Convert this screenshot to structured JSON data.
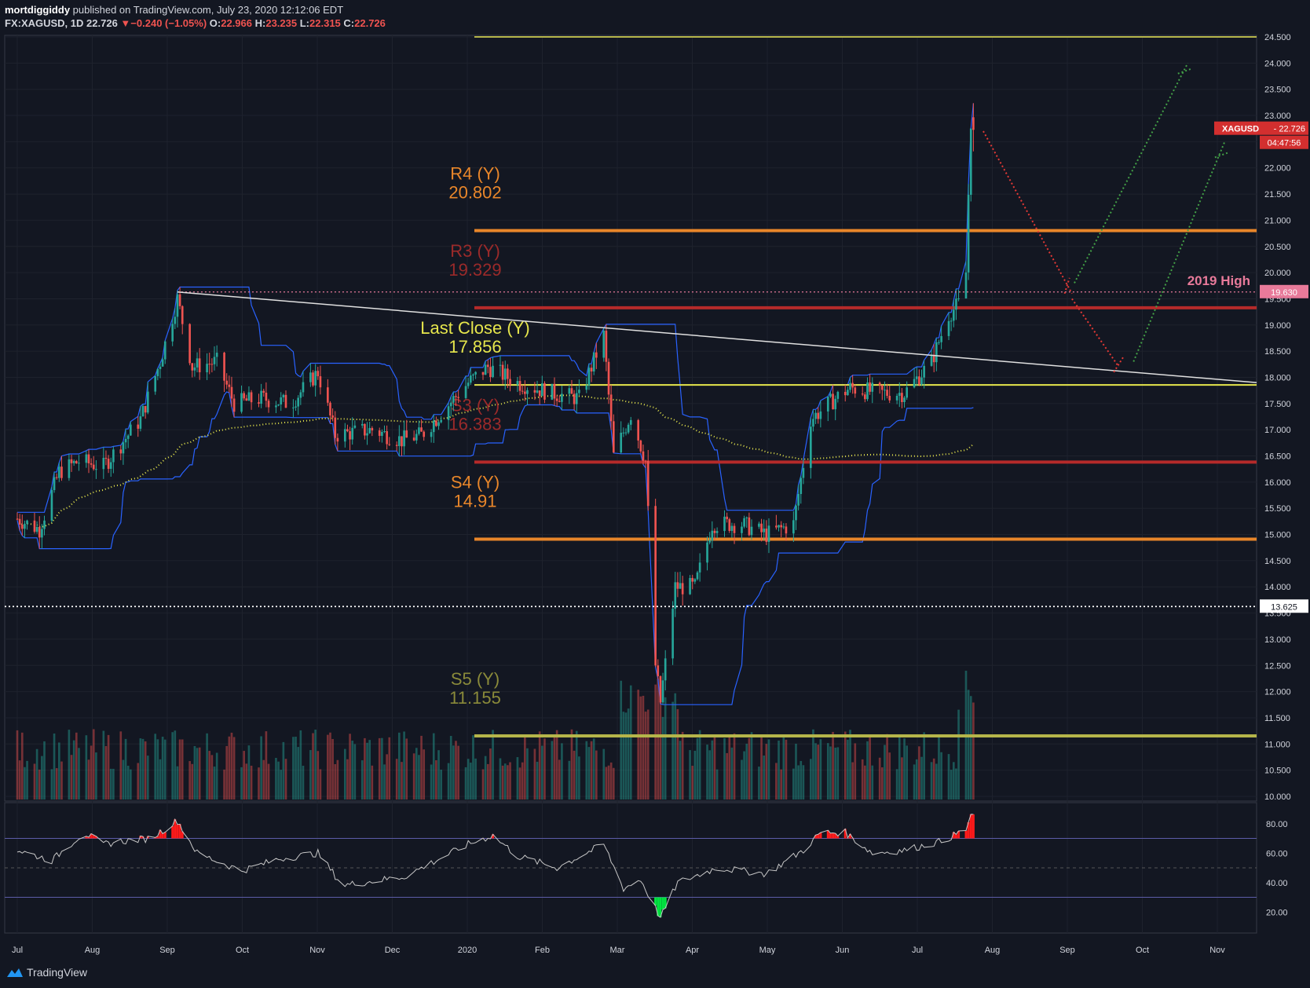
{
  "header": {
    "publisher": "mortdiggiddy",
    "published_text": " published on TradingView.com, July 23, 2020 12:12:06 EDT",
    "symbol": "FX:XAGUSD, 1D",
    "last": "22.726",
    "change": "−0.240 (−1.05%)",
    "open_label": "O:",
    "open": "22.966",
    "high_label": "H:",
    "high": "23.235",
    "low_label": "L:",
    "low": "22.315",
    "close_label": "C:",
    "close": "22.726"
  },
  "footer": {
    "brand": "TradingView"
  },
  "colors": {
    "background": "#131722",
    "up": "#26a69a",
    "down": "#ef5350",
    "pivot_orange": "#e8862a",
    "pivot_red": "#b52a2a",
    "pivot_yellow": "#e6e64c",
    "pivot_olive": "#b5b54a",
    "donchian": "#2962ff",
    "rsi_line": "#c8c8c8"
  },
  "chart_data": {
    "type": "candlestick",
    "symbol": "XAGUSD",
    "ylim": [
      10.0,
      24.5
    ],
    "y_ticks": [
      "24.500",
      "24.000",
      "23.500",
      "23.000",
      "22.500",
      "22.000",
      "21.500",
      "21.000",
      "20.500",
      "20.000",
      "19.500",
      "19.000",
      "18.500",
      "18.000",
      "17.500",
      "17.000",
      "16.500",
      "16.000",
      "15.500",
      "15.000",
      "14.500",
      "14.000",
      "13.500",
      "13.000",
      "12.500",
      "12.000",
      "11.500",
      "11.000",
      "10.500",
      "10.000"
    ],
    "x_ticks": [
      "Jul",
      "Aug",
      "Sep",
      "Oct",
      "Nov",
      "Dec",
      "2020",
      "Feb",
      "Mar",
      "Apr",
      "May",
      "Jun",
      "Jul",
      "Aug",
      "Sep",
      "Oct",
      "Nov"
    ],
    "price_path": [
      [
        "2019-07-01",
        15.3
      ],
      [
        "2019-07-10",
        15.1
      ],
      [
        "2019-07-18",
        16.2
      ],
      [
        "2019-07-26",
        16.4
      ],
      [
        "2019-08-05",
        16.3
      ],
      [
        "2019-08-20",
        17.2
      ],
      [
        "2019-08-28",
        18.3
      ],
      [
        "2019-09-04",
        19.5
      ],
      [
        "2019-09-10",
        18.2
      ],
      [
        "2019-09-20",
        18.3
      ],
      [
        "2019-09-27",
        17.5
      ],
      [
        "2019-10-08",
        17.6
      ],
      [
        "2019-10-20",
        17.5
      ],
      [
        "2019-10-31",
        18.1
      ],
      [
        "2019-11-07",
        16.9
      ],
      [
        "2019-11-22",
        17.0
      ],
      [
        "2019-12-04",
        16.8
      ],
      [
        "2019-12-12",
        16.9
      ],
      [
        "2019-12-31",
        17.9
      ],
      [
        "2020-01-08",
        18.2
      ],
      [
        "2020-01-20",
        17.9
      ],
      [
        "2020-02-03",
        17.7
      ],
      [
        "2020-02-14",
        17.6
      ],
      [
        "2020-02-24",
        18.8
      ],
      [
        "2020-02-28",
        16.5
      ],
      [
        "2020-03-06",
        17.3
      ],
      [
        "2020-03-12",
        16.4
      ],
      [
        "2020-03-16",
        12.5
      ],
      [
        "2020-03-18",
        11.8
      ],
      [
        "2020-03-24",
        14.0
      ],
      [
        "2020-04-01",
        14.0
      ],
      [
        "2020-04-08",
        15.2
      ],
      [
        "2020-04-20",
        15.2
      ],
      [
        "2020-04-30",
        15.0
      ],
      [
        "2020-05-11",
        15.2
      ],
      [
        "2020-05-18",
        17.2
      ],
      [
        "2020-05-28",
        17.6
      ],
      [
        "2020-06-03",
        17.8
      ],
      [
        "2020-06-15",
        17.7
      ],
      [
        "2020-06-25",
        17.7
      ],
      [
        "2020-07-06",
        18.3
      ],
      [
        "2020-07-13",
        19.2
      ],
      [
        "2020-07-17",
        19.4
      ],
      [
        "2020-07-20",
        20.0
      ],
      [
        "2020-07-21",
        21.5
      ],
      [
        "2020-07-22",
        22.9
      ],
      [
        "2020-07-23",
        22.726
      ]
    ],
    "levels": [
      {
        "name": "R4 (Y)",
        "value": 20.802
      },
      {
        "name": "R3 (Y)",
        "value": 19.329
      },
      {
        "name": "Last Close (Y)",
        "value": 17.856
      },
      {
        "name": "S3 (Y)",
        "value": 16.383
      },
      {
        "name": "S4 (Y)",
        "value": 14.91
      },
      {
        "name": "S5 (Y)",
        "value": 11.155
      }
    ],
    "annotations": {
      "high_2019_label": "2019 High",
      "high_2019": "19.630",
      "dotted_level": "13.625",
      "last_tag": "XAGUSD",
      "last_price": "22.726",
      "countdown": "04:47:56"
    },
    "rsi": {
      "ticks": [
        "80.00",
        "60.00",
        "40.00",
        "20.00"
      ],
      "ylim": [
        10,
        90
      ],
      "upper": 70,
      "mid": 50,
      "lower": 30,
      "path": [
        [
          "2019-07-01",
          62
        ],
        [
          "2019-07-15",
          55
        ],
        [
          "2019-07-28",
          74
        ],
        [
          "2019-08-05",
          66
        ],
        [
          "2019-08-12",
          68
        ],
        [
          "2019-08-24",
          70
        ],
        [
          "2019-09-04",
          82
        ],
        [
          "2019-09-12",
          60
        ],
        [
          "2019-09-30",
          48
        ],
        [
          "2019-10-15",
          56
        ],
        [
          "2019-10-31",
          60
        ],
        [
          "2019-11-10",
          38
        ],
        [
          "2019-12-05",
          44
        ],
        [
          "2019-12-31",
          66
        ],
        [
          "2020-01-10",
          72
        ],
        [
          "2020-01-20",
          58
        ],
        [
          "2020-02-05",
          50
        ],
        [
          "2020-02-24",
          66
        ],
        [
          "2020-03-03",
          36
        ],
        [
          "2020-03-10",
          42
        ],
        [
          "2020-03-18",
          16
        ],
        [
          "2020-03-25",
          40
        ],
        [
          "2020-04-10",
          50
        ],
        [
          "2020-04-30",
          46
        ],
        [
          "2020-05-15",
          62
        ],
        [
          "2020-05-22",
          74
        ],
        [
          "2020-06-01",
          74
        ],
        [
          "2020-06-12",
          60
        ],
        [
          "2020-06-25",
          62
        ],
        [
          "2020-07-10",
          68
        ],
        [
          "2020-07-20",
          76
        ],
        [
          "2020-07-22",
          86
        ],
        [
          "2020-07-23",
          84
        ]
      ]
    }
  }
}
